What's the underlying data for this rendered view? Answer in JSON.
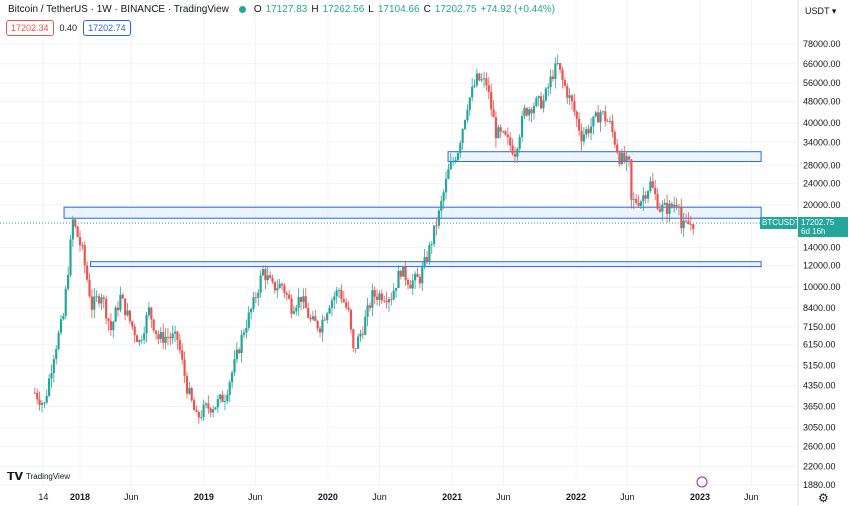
{
  "header": {
    "symbol": "Bitcoin / TetherUS · 1W · BINANCE · TradingView",
    "open_label": "O",
    "open": "17127.83",
    "high_label": "H",
    "high": "17262.56",
    "low_label": "L",
    "low": "17104.66",
    "close_label": "C",
    "close": "17202.75",
    "change": "+74.92 (+0.44%)"
  },
  "quote": {
    "bid": "17202.34",
    "spread": "0.40",
    "ask": "17202.74"
  },
  "currency": "USDT",
  "price_tag": {
    "symbol": "BTCUSDT",
    "price": "17202.75",
    "countdown": "6d 16h"
  },
  "logo_text": "TradingView",
  "colors": {
    "up": "#26a69a",
    "down": "#ef5350",
    "zone_fill": "#e3efff",
    "zone_border": "#2962ff",
    "grid": "#f0f3fa",
    "text": "#131722"
  },
  "chart_data": {
    "type": "candlestick",
    "scale": "log",
    "grid": true,
    "y_ticks": [
      78000,
      66000,
      56000,
      48000,
      40000,
      34000,
      28000,
      24000,
      20000,
      14000,
      12000,
      10000,
      8400,
      7150,
      6150,
      5150,
      4350,
      3650,
      3050,
      2600,
      2200,
      1880
    ],
    "y_tick_labels": [
      "78000.00",
      "66000.00",
      "56000.00",
      "48000.00",
      "40000.00",
      "34000.00",
      "28000.00",
      "24000.00",
      "20000.00",
      "14000.00",
      "12000.00",
      "10000.00",
      "8400.00",
      "7150.00",
      "6150.00",
      "5150.00",
      "4350.00",
      "3650.00",
      "3050.00",
      "2600.00",
      "2200.00",
      "1880.00"
    ],
    "x_ticks": [
      {
        "label": "14",
        "date": "2017-09-15",
        "bold": false
      },
      {
        "label": "2018",
        "date": "2018-01-01",
        "bold": true
      },
      {
        "label": "Jun",
        "date": "2018-06-01",
        "bold": false
      },
      {
        "label": "2019",
        "date": "2019-01-01",
        "bold": true
      },
      {
        "label": "Jun",
        "date": "2019-06-01",
        "bold": false
      },
      {
        "label": "2020",
        "date": "2020-01-01",
        "bold": true
      },
      {
        "label": "Jun",
        "date": "2020-06-01",
        "bold": false
      },
      {
        "label": "2021",
        "date": "2021-01-01",
        "bold": true
      },
      {
        "label": "Jun",
        "date": "2021-06-01",
        "bold": false
      },
      {
        "label": "2022",
        "date": "2022-01-01",
        "bold": true
      },
      {
        "label": "Jun",
        "date": "2022-06-01",
        "bold": false
      },
      {
        "label": "2023",
        "date": "2023-01-01",
        "bold": true
      },
      {
        "label": "Jun",
        "date": "2023-06-01",
        "bold": false
      }
    ],
    "current_price": 17202.75,
    "zones": [
      {
        "start": "2020-12-20",
        "end": "2023-06-30",
        "low": 28900,
        "high": 31400
      },
      {
        "start": "2017-11-15",
        "end": "2023-06-30",
        "low": 17900,
        "high": 19650
      },
      {
        "start": "2018-02-01",
        "end": "2023-06-30",
        "low": 11900,
        "high": 12400
      }
    ],
    "series": [
      {
        "date": "2017-08-21",
        "close": 4100
      },
      {
        "date": "2017-09-18",
        "close": 3700
      },
      {
        "date": "2017-10-16",
        "close": 5700
      },
      {
        "date": "2017-11-13",
        "close": 7800
      },
      {
        "date": "2017-12-11",
        "close": 17500
      },
      {
        "date": "2018-01-08",
        "close": 13500
      },
      {
        "date": "2018-02-05",
        "close": 8500
      },
      {
        "date": "2018-03-05",
        "close": 9500
      },
      {
        "date": "2018-04-02",
        "close": 7000
      },
      {
        "date": "2018-04-30",
        "close": 9200
      },
      {
        "date": "2018-05-28",
        "close": 7500
      },
      {
        "date": "2018-06-25",
        "close": 6300
      },
      {
        "date": "2018-07-23",
        "close": 8200
      },
      {
        "date": "2018-08-20",
        "close": 6500
      },
      {
        "date": "2018-09-17",
        "close": 6600
      },
      {
        "date": "2018-10-15",
        "close": 6450
      },
      {
        "date": "2018-11-12",
        "close": 4300
      },
      {
        "date": "2018-12-10",
        "close": 3300
      },
      {
        "date": "2019-01-07",
        "close": 3600
      },
      {
        "date": "2019-02-04",
        "close": 3700
      },
      {
        "date": "2019-03-04",
        "close": 4000
      },
      {
        "date": "2019-04-01",
        "close": 5200
      },
      {
        "date": "2019-04-29",
        "close": 7000
      },
      {
        "date": "2019-05-27",
        "close": 8700
      },
      {
        "date": "2019-06-24",
        "close": 11500
      },
      {
        "date": "2019-07-22",
        "close": 10000
      },
      {
        "date": "2019-08-19",
        "close": 10200
      },
      {
        "date": "2019-09-16",
        "close": 8500
      },
      {
        "date": "2019-10-14",
        "close": 9200
      },
      {
        "date": "2019-11-11",
        "close": 7500
      },
      {
        "date": "2019-12-09",
        "close": 7200
      },
      {
        "date": "2020-01-06",
        "close": 8800
      },
      {
        "date": "2020-02-03",
        "close": 9800
      },
      {
        "date": "2020-03-02",
        "close": 8000
      },
      {
        "date": "2020-03-16",
        "close": 5800
      },
      {
        "date": "2020-04-13",
        "close": 7100
      },
      {
        "date": "2020-05-11",
        "close": 9300
      },
      {
        "date": "2020-06-08",
        "close": 9400
      },
      {
        "date": "2020-07-06",
        "close": 9300
      },
      {
        "date": "2020-08-03",
        "close": 11600
      },
      {
        "date": "2020-08-31",
        "close": 10400
      },
      {
        "date": "2020-09-28",
        "close": 10800
      },
      {
        "date": "2020-10-26",
        "close": 13800
      },
      {
        "date": "2020-11-23",
        "close": 18500
      },
      {
        "date": "2020-12-21",
        "close": 26500
      },
      {
        "date": "2021-01-18",
        "close": 32000
      },
      {
        "date": "2021-02-15",
        "close": 47000
      },
      {
        "date": "2021-03-15",
        "close": 58000
      },
      {
        "date": "2021-04-12",
        "close": 56000
      },
      {
        "date": "2021-05-10",
        "close": 37000
      },
      {
        "date": "2021-06-07",
        "close": 35000
      },
      {
        "date": "2021-07-05",
        "close": 31500
      },
      {
        "date": "2021-08-02",
        "close": 44000
      },
      {
        "date": "2021-08-30",
        "close": 47000
      },
      {
        "date": "2021-09-27",
        "close": 48000
      },
      {
        "date": "2021-10-25",
        "close": 61000
      },
      {
        "date": "2021-11-08",
        "close": 65000
      },
      {
        "date": "2021-11-22",
        "close": 57000
      },
      {
        "date": "2021-12-20",
        "close": 47000
      },
      {
        "date": "2022-01-17",
        "close": 36000
      },
      {
        "date": "2022-02-14",
        "close": 39000
      },
      {
        "date": "2022-03-14",
        "close": 44000
      },
      {
        "date": "2022-04-11",
        "close": 39500
      },
      {
        "date": "2022-05-09",
        "close": 30000
      },
      {
        "date": "2022-06-06",
        "close": 28000
      },
      {
        "date": "2022-06-13",
        "close": 20500
      },
      {
        "date": "2022-07-11",
        "close": 21000
      },
      {
        "date": "2022-08-08",
        "close": 24000
      },
      {
        "date": "2022-09-05",
        "close": 19500
      },
      {
        "date": "2022-10-03",
        "close": 19500
      },
      {
        "date": "2022-10-31",
        "close": 21000
      },
      {
        "date": "2022-11-07",
        "close": 16500
      },
      {
        "date": "2022-11-28",
        "close": 17000
      },
      {
        "date": "2022-12-12",
        "close": 17200
      }
    ]
  }
}
